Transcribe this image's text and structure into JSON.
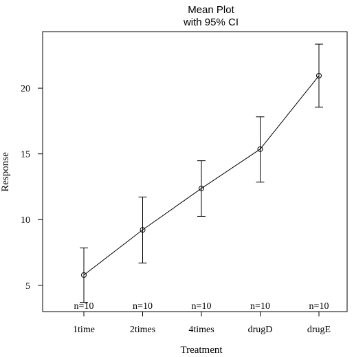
{
  "chart_data": {
    "type": "line",
    "title": "Mean Plot",
    "subtitle": "with 95% CI",
    "xlabel": "Treatment",
    "ylabel": "Response",
    "categories": [
      "1time",
      "2times",
      "4times",
      "drugD",
      "drugE"
    ],
    "means": [
      5.78,
      9.22,
      12.37,
      15.36,
      20.95
    ],
    "ci_lower": [
      3.7,
      6.7,
      10.25,
      12.85,
      18.55
    ],
    "ci_upper": [
      7.85,
      11.72,
      14.48,
      17.82,
      23.35
    ],
    "n_labels": [
      "n=10",
      "n=10",
      "n=10",
      "n=10",
      "n=10"
    ],
    "y_ticks": [
      5,
      10,
      15,
      20
    ],
    "ylim": [
      3.0,
      24.3
    ],
    "grid": false,
    "legend": "none"
  }
}
